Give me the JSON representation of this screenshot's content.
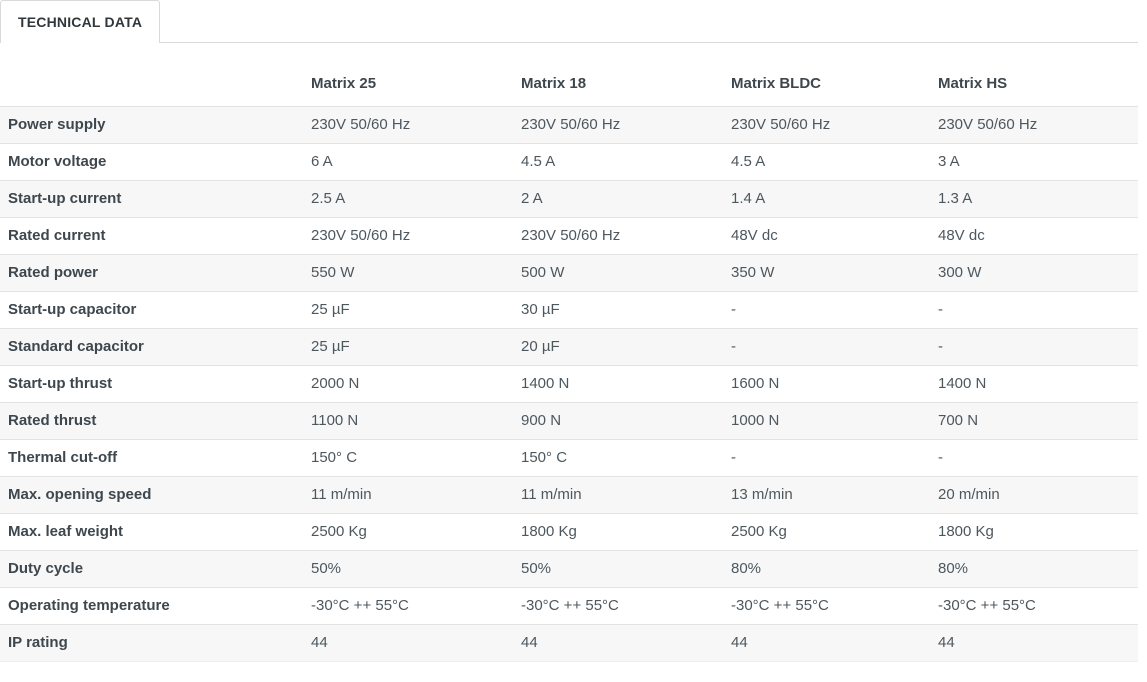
{
  "tab": {
    "label": "TECHNICAL DATA"
  },
  "table": {
    "columns": [
      "Matrix 25",
      "Matrix 18",
      "Matrix BLDC",
      "Matrix HS"
    ],
    "rows": [
      {
        "label": "Power supply",
        "values": [
          "230V 50/60 Hz",
          "230V 50/60 Hz",
          "230V 50/60 Hz",
          "230V 50/60 Hz"
        ]
      },
      {
        "label": "Motor voltage",
        "values": [
          "6 A",
          "4.5 A",
          "4.5 A",
          "3 A"
        ]
      },
      {
        "label": "Start-up current",
        "values": [
          "2.5 A",
          "2 A",
          "1.4 A",
          "1.3 A"
        ]
      },
      {
        "label": "Rated current",
        "values": [
          "230V 50/60 Hz",
          "230V 50/60 Hz",
          "48V dc",
          "48V dc"
        ]
      },
      {
        "label": "Rated power",
        "values": [
          "550 W",
          "500 W",
          "350 W",
          "300 W"
        ]
      },
      {
        "label": "Start-up capacitor",
        "values": [
          "25 µF",
          "30 µF",
          "-",
          "-"
        ]
      },
      {
        "label": "Standard capacitor",
        "values": [
          "25 µF",
          "20 µF",
          "-",
          "-"
        ]
      },
      {
        "label": "Start-up thrust",
        "values": [
          "2000 N",
          "1400 N",
          "1600 N",
          "1400 N"
        ]
      },
      {
        "label": "Rated thrust",
        "values": [
          "1100 N",
          "900 N",
          "1000 N",
          "700 N"
        ]
      },
      {
        "label": "Thermal cut-off",
        "values": [
          "150° C",
          "150° C",
          "-",
          "-"
        ]
      },
      {
        "label": "Max. opening speed",
        "values": [
          "11 m/min",
          "11 m/min",
          "13 m/min",
          "20 m/min"
        ]
      },
      {
        "label": "Max. leaf weight",
        "values": [
          "2500 Kg",
          "1800 Kg",
          "2500 Kg",
          "1800 Kg"
        ]
      },
      {
        "label": "Duty cycle",
        "values": [
          "50%",
          "50%",
          "80%",
          "80%"
        ]
      },
      {
        "label": "Operating temperature",
        "values": [
          "-30°C ++ 55°C",
          "-30°C ++ 55°C",
          "-30°C ++ 55°C",
          "-30°C ++ 55°C"
        ]
      },
      {
        "label": "IP rating",
        "values": [
          "44",
          "44",
          "44",
          "44"
        ]
      }
    ]
  },
  "colors": {
    "row_stripe": "#f7f7f7",
    "row_border": "#e2e2e2",
    "tab_border": "#d9d9d9",
    "heading_text": "#3e474d",
    "body_text": "#4d575e"
  }
}
